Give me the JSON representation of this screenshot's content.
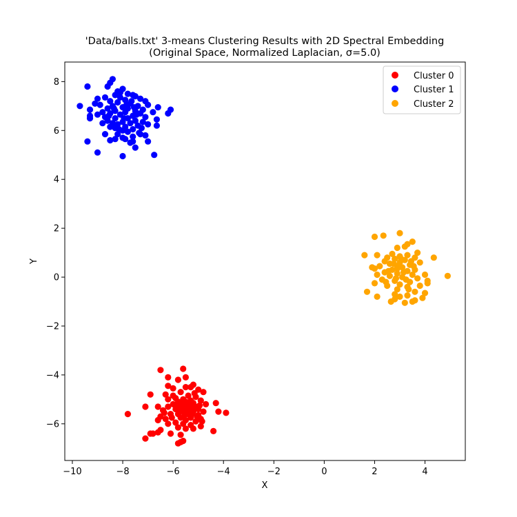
{
  "chart_data": {
    "type": "scatter",
    "title": "'Data/balls.txt' 3-means Clustering Results with 2D Spectral Embedding",
    "subtitle": "(Original Space, Normalized Laplacian, σ=5.0)",
    "xlabel": "X",
    "ylabel": "Y",
    "xlim": [
      -10.3,
      5.6
    ],
    "ylim": [
      -7.5,
      8.8
    ],
    "xticks": [
      -10,
      -8,
      -6,
      -4,
      -2,
      0,
      2,
      4
    ],
    "yticks": [
      -6,
      -4,
      -2,
      0,
      2,
      4,
      6,
      8
    ],
    "xtick_labels": [
      "−10",
      "−8",
      "−6",
      "−4",
      "−2",
      "0",
      "2",
      "4"
    ],
    "ytick_labels": [
      "−6",
      "−4",
      "−2",
      "0",
      "2",
      "4",
      "6",
      "8"
    ],
    "grid": false,
    "legend_position": "top-right",
    "series": [
      {
        "name": "Cluster 0",
        "color": "#ff0000",
        "points": [
          [
            -6.5,
            -3.8
          ],
          [
            -5.6,
            -3.75
          ],
          [
            -5.5,
            -4.1
          ],
          [
            -6.2,
            -4.1
          ],
          [
            -5.8,
            -4.2
          ],
          [
            -5.2,
            -4.4
          ],
          [
            -5.3,
            -4.5
          ],
          [
            -4.8,
            -4.7
          ],
          [
            -6.2,
            -4.45
          ],
          [
            -6.0,
            -4.55
          ],
          [
            -5.5,
            -4.5
          ],
          [
            -5.0,
            -4.6
          ],
          [
            -5.7,
            -4.7
          ],
          [
            -6.3,
            -4.8
          ],
          [
            -6.9,
            -4.8
          ],
          [
            -5.4,
            -4.85
          ],
          [
            -5.1,
            -4.9
          ],
          [
            -5.9,
            -4.95
          ],
          [
            -6.2,
            -5.0
          ],
          [
            -5.6,
            -5.0
          ],
          [
            -5.3,
            -5.05
          ],
          [
            -4.9,
            -5.05
          ],
          [
            -5.8,
            -5.1
          ],
          [
            -5.5,
            -5.1
          ],
          [
            -5.2,
            -5.15
          ],
          [
            -6.0,
            -5.2
          ],
          [
            -4.7,
            -5.2
          ],
          [
            -4.3,
            -5.15
          ],
          [
            -5.4,
            -5.25
          ],
          [
            -5.7,
            -5.3
          ],
          [
            -5.1,
            -5.3
          ],
          [
            -6.2,
            -5.3
          ],
          [
            -6.6,
            -5.3
          ],
          [
            -7.1,
            -5.3
          ],
          [
            -5.3,
            -5.35
          ],
          [
            -5.9,
            -5.4
          ],
          [
            -5.5,
            -5.4
          ],
          [
            -5.0,
            -5.4
          ],
          [
            -6.4,
            -5.45
          ],
          [
            -5.6,
            -5.5
          ],
          [
            -5.2,
            -5.5
          ],
          [
            -4.8,
            -5.5
          ],
          [
            -4.2,
            -5.5
          ],
          [
            -3.9,
            -5.55
          ],
          [
            -7.8,
            -5.6
          ],
          [
            -6.1,
            -5.6
          ],
          [
            -5.8,
            -5.6
          ],
          [
            -5.4,
            -5.6
          ],
          [
            -5.0,
            -5.65
          ],
          [
            -6.5,
            -5.7
          ],
          [
            -5.7,
            -5.75
          ],
          [
            -5.3,
            -5.75
          ],
          [
            -4.9,
            -5.8
          ],
          [
            -6.3,
            -5.8
          ],
          [
            -6.6,
            -5.85
          ],
          [
            -5.5,
            -5.85
          ],
          [
            -5.1,
            -5.9
          ],
          [
            -5.9,
            -5.95
          ],
          [
            -6.2,
            -6.0
          ],
          [
            -5.6,
            -6.0
          ],
          [
            -5.3,
            -6.05
          ],
          [
            -4.9,
            -6.1
          ],
          [
            -5.8,
            -6.15
          ],
          [
            -5.5,
            -6.2
          ],
          [
            -6.5,
            -6.25
          ],
          [
            -5.2,
            -6.2
          ],
          [
            -4.4,
            -6.3
          ],
          [
            -6.6,
            -6.35
          ],
          [
            -6.9,
            -6.4
          ],
          [
            -6.8,
            -6.4
          ],
          [
            -6.1,
            -6.4
          ],
          [
            -5.7,
            -6.45
          ],
          [
            -7.1,
            -6.6
          ],
          [
            -5.6,
            -6.7
          ],
          [
            -5.8,
            -6.8
          ],
          [
            -5.7,
            -6.75
          ],
          [
            -5.45,
            -5.3
          ],
          [
            -5.65,
            -5.2
          ],
          [
            -5.35,
            -5.45
          ],
          [
            -5.25,
            -5.6
          ],
          [
            -5.55,
            -5.65
          ],
          [
            -5.75,
            -5.45
          ],
          [
            -6.05,
            -5.75
          ],
          [
            -4.95,
            -5.25
          ],
          [
            -5.05,
            -5.7
          ],
          [
            -6.35,
            -5.55
          ],
          [
            -5.85,
            -5.25
          ],
          [
            -5.15,
            -4.75
          ],
          [
            -4.85,
            -5.9
          ],
          [
            -6.0,
            -4.85
          ]
        ]
      },
      {
        "name": "Cluster 1",
        "color": "#0000ff",
        "points": [
          [
            -8.4,
            8.1
          ],
          [
            -8.5,
            7.95
          ],
          [
            -9.4,
            7.8
          ],
          [
            -8.6,
            7.8
          ],
          [
            -8.0,
            7.7
          ],
          [
            -8.2,
            7.6
          ],
          [
            -7.8,
            7.5
          ],
          [
            -8.3,
            7.45
          ],
          [
            -7.6,
            7.45
          ],
          [
            -7.5,
            7.4
          ],
          [
            -8.1,
            7.35
          ],
          [
            -8.7,
            7.35
          ],
          [
            -9.0,
            7.3
          ],
          [
            -7.3,
            7.3
          ],
          [
            -7.9,
            7.25
          ],
          [
            -8.5,
            7.2
          ],
          [
            -7.1,
            7.2
          ],
          [
            -9.1,
            7.1
          ],
          [
            -8.2,
            7.15
          ],
          [
            -7.7,
            7.1
          ],
          [
            -8.9,
            7.05
          ],
          [
            -7.0,
            7.05
          ],
          [
            -8.4,
            7.0
          ],
          [
            -9.7,
            7.0
          ],
          [
            -7.4,
            7.0
          ],
          [
            -8.0,
            6.95
          ],
          [
            -6.6,
            6.95
          ],
          [
            -8.6,
            6.9
          ],
          [
            -7.8,
            6.9
          ],
          [
            -9.3,
            6.85
          ],
          [
            -7.2,
            6.85
          ],
          [
            -6.1,
            6.85
          ],
          [
            -8.3,
            6.8
          ],
          [
            -7.5,
            6.8
          ],
          [
            -8.8,
            6.75
          ],
          [
            -7.9,
            6.75
          ],
          [
            -6.8,
            6.75
          ],
          [
            -8.5,
            6.7
          ],
          [
            -7.3,
            6.7
          ],
          [
            -6.2,
            6.7
          ],
          [
            -9.0,
            6.65
          ],
          [
            -8.1,
            6.65
          ],
          [
            -7.6,
            6.6
          ],
          [
            -9.3,
            6.6
          ],
          [
            -8.7,
            6.55
          ],
          [
            -7.1,
            6.55
          ],
          [
            -9.3,
            6.5
          ],
          [
            -8.3,
            6.5
          ],
          [
            -7.8,
            6.5
          ],
          [
            -6.65,
            6.45
          ],
          [
            -8.6,
            6.4
          ],
          [
            -7.5,
            6.4
          ],
          [
            -8.0,
            6.35
          ],
          [
            -7.2,
            6.35
          ],
          [
            -8.8,
            6.3
          ],
          [
            -8.4,
            6.3
          ],
          [
            -7.7,
            6.3
          ],
          [
            -8.2,
            6.25
          ],
          [
            -7.0,
            6.25
          ],
          [
            -6.65,
            6.2
          ],
          [
            -8.5,
            6.15
          ],
          [
            -7.4,
            6.2
          ],
          [
            -7.9,
            6.15
          ],
          [
            -8.3,
            6.1
          ],
          [
            -7.6,
            6.05
          ],
          [
            -8.0,
            6.0
          ],
          [
            -7.8,
            5.95
          ],
          [
            -7.35,
            5.9
          ],
          [
            -7.3,
            5.85
          ],
          [
            -8.2,
            5.85
          ],
          [
            -8.7,
            5.85
          ],
          [
            -7.1,
            5.8
          ],
          [
            -7.6,
            5.75
          ],
          [
            -8.0,
            5.7
          ],
          [
            -8.3,
            5.65
          ],
          [
            -7.9,
            5.65
          ],
          [
            -8.5,
            5.6
          ],
          [
            -7.6,
            5.55
          ],
          [
            -7.7,
            5.5
          ],
          [
            -9.4,
            5.55
          ],
          [
            -7.0,
            5.55
          ],
          [
            -7.5,
            5.3
          ],
          [
            -9.0,
            5.1
          ],
          [
            -6.75,
            5.0
          ],
          [
            -8.0,
            4.95
          ],
          [
            -8.1,
            7.55
          ],
          [
            -7.65,
            7.2
          ],
          [
            -8.35,
            6.9
          ],
          [
            -7.95,
            6.5
          ],
          [
            -7.45,
            6.65
          ],
          [
            -8.15,
            6.05
          ],
          [
            -7.25,
            6.1
          ],
          [
            -8.55,
            6.6
          ],
          [
            -7.85,
            7.05
          ],
          [
            -7.55,
            6.95
          ]
        ]
      },
      {
        "name": "Cluster 2",
        "color": "#ffa500",
        "points": [
          [
            3.0,
            1.8
          ],
          [
            2.0,
            1.65
          ],
          [
            2.35,
            1.7
          ],
          [
            3.5,
            1.45
          ],
          [
            3.3,
            1.35
          ],
          [
            3.2,
            1.25
          ],
          [
            2.9,
            1.2
          ],
          [
            3.7,
            1.0
          ],
          [
            1.6,
            0.9
          ],
          [
            2.1,
            0.9
          ],
          [
            2.7,
            0.95
          ],
          [
            3.3,
            0.9
          ],
          [
            3.0,
            0.85
          ],
          [
            2.5,
            0.8
          ],
          [
            3.6,
            0.8
          ],
          [
            4.35,
            0.8
          ],
          [
            2.8,
            0.75
          ],
          [
            3.2,
            0.7
          ],
          [
            2.4,
            0.65
          ],
          [
            3.8,
            0.6
          ],
          [
            3.0,
            0.6
          ],
          [
            2.6,
            0.55
          ],
          [
            3.4,
            0.5
          ],
          [
            2.2,
            0.45
          ],
          [
            2.9,
            0.45
          ],
          [
            3.1,
            0.4
          ],
          [
            1.9,
            0.4
          ],
          [
            2.0,
            0.35
          ],
          [
            3.6,
            0.3
          ],
          [
            2.7,
            0.3
          ],
          [
            3.3,
            0.25
          ],
          [
            2.4,
            0.2
          ],
          [
            2.9,
            0.15
          ],
          [
            2.1,
            0.1
          ],
          [
            3.5,
            0.1
          ],
          [
            4.0,
            0.1
          ],
          [
            4.9,
            0.05
          ],
          [
            2.6,
            0.05
          ],
          [
            3.1,
            0.0
          ],
          [
            3.7,
            -0.05
          ],
          [
            2.3,
            -0.1
          ],
          [
            2.8,
            -0.15
          ],
          [
            4.1,
            -0.15
          ],
          [
            3.4,
            -0.2
          ],
          [
            2.0,
            -0.25
          ],
          [
            4.1,
            -0.25
          ],
          [
            3.0,
            -0.3
          ],
          [
            2.5,
            -0.35
          ],
          [
            3.8,
            -0.35
          ],
          [
            3.3,
            -0.4
          ],
          [
            2.9,
            -0.5
          ],
          [
            3.6,
            -0.6
          ],
          [
            1.7,
            -0.6
          ],
          [
            4.0,
            -0.65
          ],
          [
            2.8,
            -0.7
          ],
          [
            3.3,
            -0.75
          ],
          [
            2.1,
            -0.8
          ],
          [
            3.0,
            -0.8
          ],
          [
            3.9,
            -0.85
          ],
          [
            2.8,
            -0.9
          ],
          [
            3.6,
            -0.95
          ],
          [
            2.65,
            -1.0
          ],
          [
            3.5,
            -1.0
          ],
          [
            3.2,
            -1.05
          ],
          [
            2.9,
            0.35
          ],
          [
            3.15,
            0.2
          ],
          [
            2.75,
            0.55
          ],
          [
            3.45,
            0.65
          ],
          [
            2.55,
            0.25
          ],
          [
            3.25,
            -0.1
          ],
          [
            2.85,
            -0.05
          ],
          [
            3.05,
            0.75
          ],
          [
            2.45,
            -0.2
          ],
          [
            3.55,
            0.45
          ],
          [
            3.35,
            -0.5
          ]
        ]
      }
    ]
  }
}
